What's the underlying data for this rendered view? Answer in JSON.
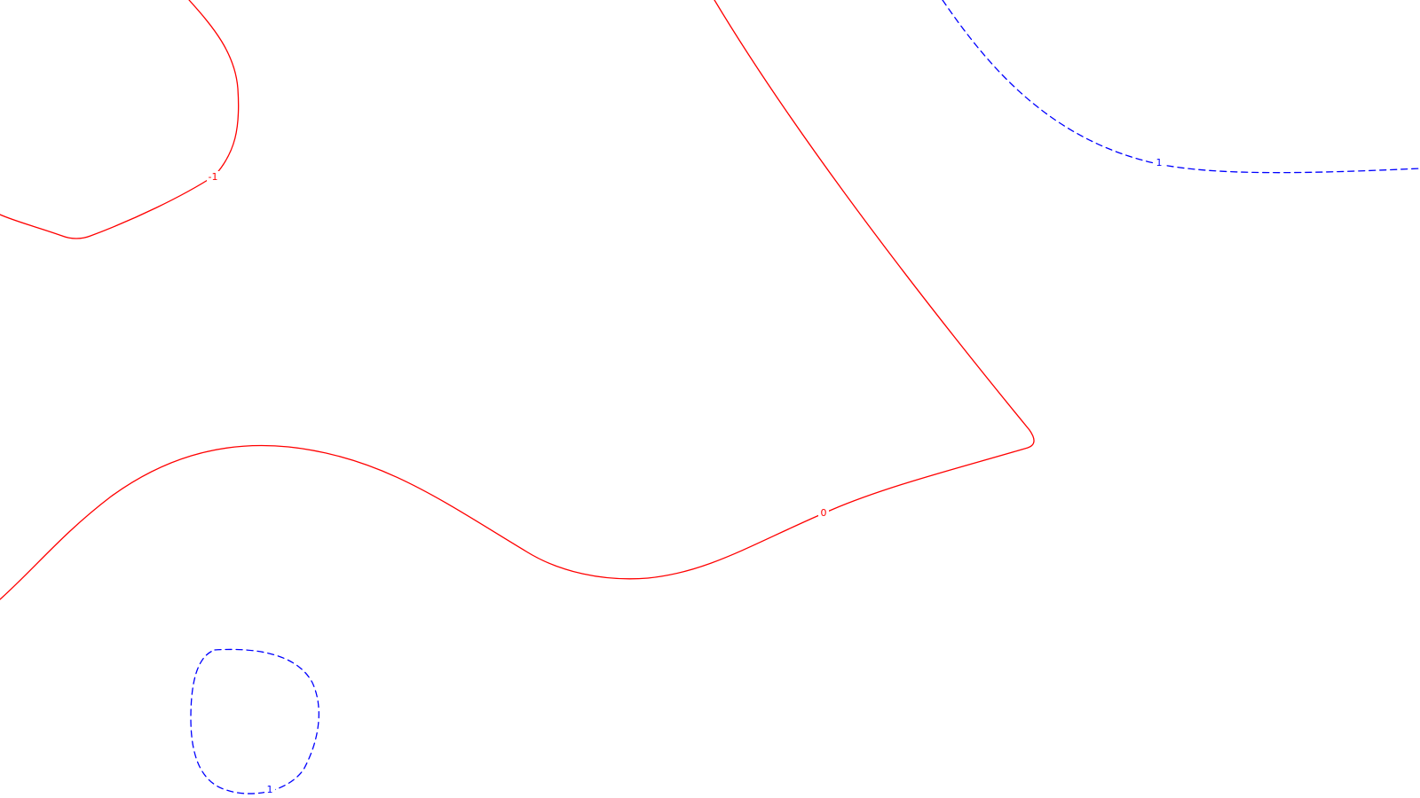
{
  "chart_data": {
    "type": "contour",
    "title": "",
    "xlabel": "",
    "ylabel": "",
    "grid": false,
    "legend": "none",
    "levels": [
      {
        "value": -1,
        "label": "-1",
        "style": "solid",
        "color": "#ff0000",
        "segments": 1
      },
      {
        "value": 0,
        "label": "0",
        "style": "solid",
        "color": "#ff0000",
        "segments": 1
      },
      {
        "value": 1,
        "label": "1",
        "style": "dashed",
        "color": "#0000ff",
        "segments": 2
      }
    ]
  }
}
